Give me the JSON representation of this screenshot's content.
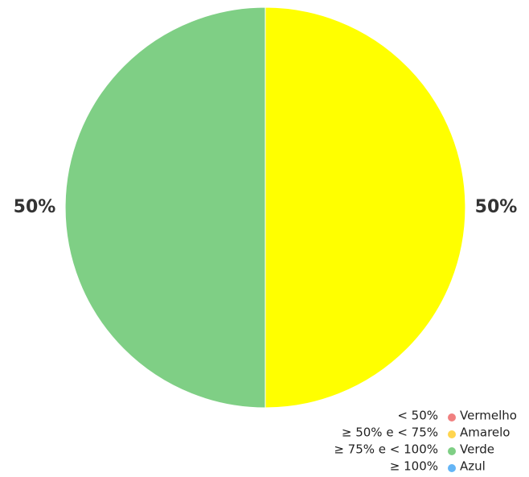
{
  "chart_data": {
    "type": "pie",
    "title": "",
    "slices": [
      {
        "name": "Amarelo",
        "value": 50,
        "label": "50%",
        "color": "#ffff00"
      },
      {
        "name": "Verde",
        "value": 50,
        "label": "50%",
        "color": "#7fcf85"
      }
    ],
    "legend": {
      "placement": "bottom-right",
      "entries": [
        {
          "range": "< 50%",
          "name": "Vermelho",
          "color": "#f08080"
        },
        {
          "range": "≥ 50% e < 75%",
          "name": "Amarelo",
          "color": "#ffd54f"
        },
        {
          "range": "≥ 75% e < 100%",
          "name": "Verde",
          "color": "#7fcf85"
        },
        {
          "range": "≥ 100%",
          "name": "Azul",
          "color": "#64b5f6"
        }
      ]
    }
  }
}
